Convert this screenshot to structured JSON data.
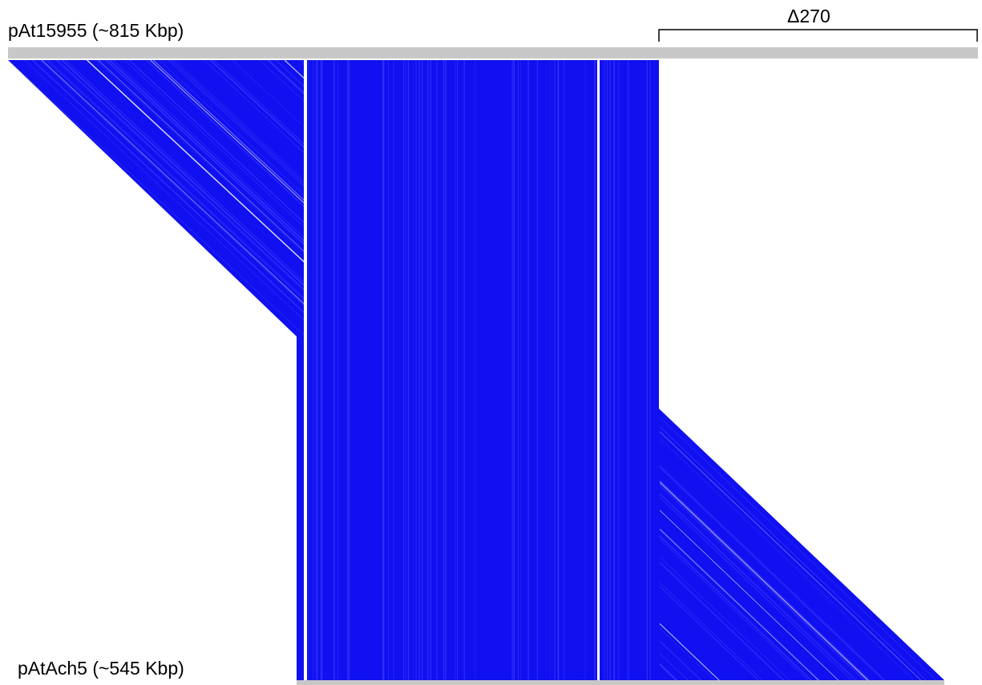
{
  "diagram": {
    "top_sequence": {
      "label": "pAt15955 (~815 Kbp)",
      "bar_color": "#c8c8c8"
    },
    "bottom_sequence": {
      "label": "pAtAch5 (~545 Kbp)",
      "bar_color": "#c8c8c8"
    },
    "deletion": {
      "label": "Δ270"
    },
    "alignment_color": "#1010f0",
    "alignment_stripe_color": "#3a3aff",
    "gap_color": "#ffffff"
  }
}
